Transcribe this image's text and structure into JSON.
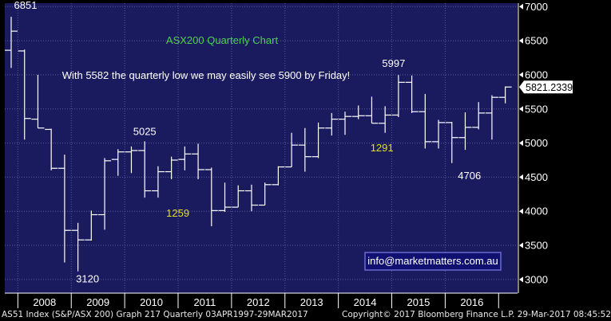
{
  "chart_data": {
    "type": "ohlc",
    "title": "ASX200 Quarterly Chart",
    "subtitle": "With 5582 the quarterly low we may easily see 5900 by Friday!",
    "contact": "info@marketmatters.com.au",
    "last_value_label": "5821.2339",
    "ylim": [
      2800,
      7050
    ],
    "yticks": [
      3000,
      3500,
      4000,
      4500,
      5000,
      5500,
      6000,
      6500,
      7000
    ],
    "xtick_labels": [
      "2008",
      "2009",
      "2010",
      "2011",
      "2012",
      "2013",
      "2014",
      "2015",
      "2016"
    ],
    "annotations": [
      {
        "text": "6851",
        "color": "#ffffff",
        "bar_index": 0
      },
      {
        "text": "3120",
        "color": "#ffffff",
        "bar_index": 5
      },
      {
        "text": "5025",
        "color": "#ffffff",
        "bar_index": 10
      },
      {
        "text": "1259",
        "color": "#e0e020",
        "bar_index": 12
      },
      {
        "text": "5997",
        "color": "#ffffff",
        "bar_index": 29
      },
      {
        "text": "1291",
        "color": "#e0e020",
        "bar_index": 28
      },
      {
        "text": "4706",
        "color": "#ffffff",
        "bar_index": 33
      }
    ],
    "bars": [
      {
        "period": "2007 Q4",
        "open": 6360,
        "high": 6851,
        "low": 6100,
        "close": 6640
      },
      {
        "period": "2008 Q1",
        "open": 6350,
        "high": 6370,
        "low": 5050,
        "close": 5360
      },
      {
        "period": "2008 Q2",
        "open": 5350,
        "high": 6000,
        "low": 5220,
        "close": 5220
      },
      {
        "period": "2008 Q3",
        "open": 5200,
        "high": 5210,
        "low": 4600,
        "close": 4630
      },
      {
        "period": "2008 Q4",
        "open": 4630,
        "high": 4830,
        "low": 3250,
        "close": 3720
      },
      {
        "period": "2009 Q1",
        "open": 3720,
        "high": 3830,
        "low": 3120,
        "close": 3580
      },
      {
        "period": "2009 Q2",
        "open": 3580,
        "high": 4010,
        "low": 3570,
        "close": 3950
      },
      {
        "period": "2009 Q3",
        "open": 3950,
        "high": 4780,
        "low": 3730,
        "close": 4740
      },
      {
        "period": "2009 Q4",
        "open": 4760,
        "high": 4910,
        "low": 4520,
        "close": 4870
      },
      {
        "period": "2010 Q1",
        "open": 4870,
        "high": 4950,
        "low": 4560,
        "close": 4890
      },
      {
        "period": "2010 Q2",
        "open": 4890,
        "high": 5025,
        "low": 4200,
        "close": 4300
      },
      {
        "period": "2010 Q3",
        "open": 4300,
        "high": 4660,
        "low": 4200,
        "close": 4580
      },
      {
        "period": "2010 Q4",
        "open": 4580,
        "high": 4800,
        "low": 4470,
        "close": 4750
      },
      {
        "period": "2011 Q1",
        "open": 4760,
        "high": 4950,
        "low": 4600,
        "close": 4840
      },
      {
        "period": "2011 Q2",
        "open": 4840,
        "high": 4990,
        "low": 4470,
        "close": 4610
      },
      {
        "period": "2011 Q3",
        "open": 4610,
        "high": 4640,
        "low": 3780,
        "close": 4010
      },
      {
        "period": "2011 Q4",
        "open": 4010,
        "high": 4420,
        "low": 3990,
        "close": 4060
      },
      {
        "period": "2012 Q1",
        "open": 4060,
        "high": 4380,
        "low": 4060,
        "close": 4300
      },
      {
        "period": "2012 Q2",
        "open": 4300,
        "high": 4390,
        "low": 4000,
        "close": 4090
      },
      {
        "period": "2012 Q3",
        "open": 4090,
        "high": 4420,
        "low": 4090,
        "close": 4390
      },
      {
        "period": "2012 Q4",
        "open": 4390,
        "high": 4660,
        "low": 4380,
        "close": 4650
      },
      {
        "period": "2013 Q1",
        "open": 4650,
        "high": 5150,
        "low": 4650,
        "close": 4970
      },
      {
        "period": "2013 Q2",
        "open": 4970,
        "high": 5220,
        "low": 4580,
        "close": 4800
      },
      {
        "period": "2013 Q3",
        "open": 4800,
        "high": 5300,
        "low": 4780,
        "close": 5220
      },
      {
        "period": "2013 Q4",
        "open": 5220,
        "high": 5440,
        "low": 5110,
        "close": 5350
      },
      {
        "period": "2014 Q1",
        "open": 5350,
        "high": 5460,
        "low": 5120,
        "close": 5390
      },
      {
        "period": "2014 Q2",
        "open": 5390,
        "high": 5550,
        "low": 5350,
        "close": 5400
      },
      {
        "period": "2014 Q3",
        "open": 5400,
        "high": 5680,
        "low": 5290,
        "close": 5290
      },
      {
        "period": "2014 Q4",
        "open": 5290,
        "high": 5540,
        "low": 5150,
        "close": 5410
      },
      {
        "period": "2015 Q1",
        "open": 5410,
        "high": 5997,
        "low": 5380,
        "close": 5890
      },
      {
        "period": "2015 Q2",
        "open": 5890,
        "high": 5990,
        "low": 5440,
        "close": 5460
      },
      {
        "period": "2015 Q3",
        "open": 5460,
        "high": 5720,
        "low": 4920,
        "close": 5020
      },
      {
        "period": "2015 Q4",
        "open": 5020,
        "high": 5340,
        "low": 4920,
        "close": 5300
      },
      {
        "period": "2016 Q1",
        "open": 5300,
        "high": 5310,
        "low": 4706,
        "close": 5080
      },
      {
        "period": "2016 Q2",
        "open": 5080,
        "high": 5450,
        "low": 4900,
        "close": 5230
      },
      {
        "period": "2016 Q3",
        "open": 5230,
        "high": 5600,
        "low": 5200,
        "close": 5440
      },
      {
        "period": "2016 Q4",
        "open": 5440,
        "high": 5700,
        "low": 5050,
        "close": 5670
      },
      {
        "period": "2017 Q1",
        "open": 5670,
        "high": 5830,
        "low": 5582,
        "close": 5821
      }
    ]
  },
  "colors": {
    "plot_bg": "#1a1a5e",
    "grid": "#5a5a9a",
    "bar": "#ffffff",
    "axis_text": "#ffffff",
    "title": "#50d050",
    "highlight": "#e0e020",
    "contact_bg": "#101070",
    "contact_border": "#6a6ad0"
  },
  "footer": {
    "left": "AS51 Index (S&P/ASX 200) Graph 217  Quarterly 03APR1997-29MAR2017",
    "right": "Copyright© 2017 Bloomberg Finance L.P.  29-Mar-2017 08:45:52"
  }
}
